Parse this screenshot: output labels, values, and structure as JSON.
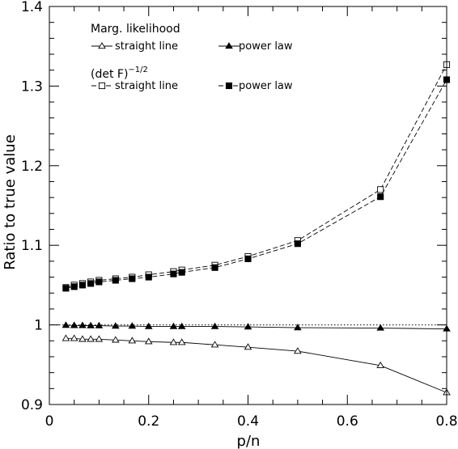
{
  "chart_data": {
    "type": "line",
    "xlabel": "p/n",
    "ylabel": "Ratio to true value",
    "xlim": [
      0,
      0.8
    ],
    "ylim": [
      0.9,
      1.4
    ],
    "xticks": [
      0,
      0.2,
      0.4,
      0.6,
      0.8
    ],
    "xtick_labels": [
      "0",
      "0.2",
      "0.4",
      "0.6",
      "0.8"
    ],
    "yticks": [
      0.9,
      1,
      1.1,
      1.2,
      1.3,
      1.4
    ],
    "ytick_labels": [
      "0.9",
      "1",
      "1.1",
      "1.2",
      "1.3",
      "1.4"
    ],
    "reference_line": {
      "y": 1,
      "style": "dotted"
    },
    "legend": {
      "placement": "top-left",
      "groups": [
        {
          "heading": "Marg. likelihood",
          "heading_base": "",
          "heading_sup": ""
        },
        {
          "heading": "",
          "heading_base": "(det F)",
          "heading_sup": "−1/2"
        }
      ]
    },
    "series": [
      {
        "name": "straight line",
        "group": 0,
        "marker": "triangle-open",
        "line": "solid",
        "x": [
          0.0333,
          0.05,
          0.0667,
          0.0833,
          0.1,
          0.1333,
          0.1667,
          0.2,
          0.25,
          0.2667,
          0.3333,
          0.4,
          0.5,
          0.6667,
          0.8
        ],
        "y": [
          0.983,
          0.983,
          0.982,
          0.982,
          0.982,
          0.981,
          0.98,
          0.979,
          0.978,
          0.978,
          0.975,
          0.972,
          0.967,
          0.949,
          0.915
        ]
      },
      {
        "name": "power law",
        "group": 0,
        "marker": "triangle-filled",
        "line": "solid",
        "x": [
          0.0333,
          0.05,
          0.0667,
          0.0833,
          0.1,
          0.1333,
          0.1667,
          0.2,
          0.25,
          0.2667,
          0.3333,
          0.4,
          0.5,
          0.6667,
          0.8
        ],
        "y": [
          0.9995,
          0.9993,
          0.9992,
          0.999,
          0.999,
          0.9985,
          0.9985,
          0.998,
          0.998,
          0.998,
          0.998,
          0.9975,
          0.9965,
          0.996,
          0.995
        ]
      },
      {
        "name": "straight line",
        "group": 1,
        "marker": "square-open",
        "line": "dashed",
        "x": [
          0.0333,
          0.05,
          0.0667,
          0.0833,
          0.1,
          0.1333,
          0.1667,
          0.2,
          0.25,
          0.2667,
          0.3333,
          0.4,
          0.5,
          0.6667,
          0.8
        ],
        "y": [
          1.047,
          1.05,
          1.052,
          1.054,
          1.056,
          1.058,
          1.06,
          1.063,
          1.067,
          1.069,
          1.075,
          1.086,
          1.106,
          1.17,
          1.327
        ]
      },
      {
        "name": "power law",
        "group": 1,
        "marker": "square-filled",
        "line": "dashed",
        "x": [
          0.0333,
          0.05,
          0.0667,
          0.0833,
          0.1,
          0.1333,
          0.1667,
          0.2,
          0.25,
          0.2667,
          0.3333,
          0.4,
          0.5,
          0.6667,
          0.8
        ],
        "y": [
          1.046,
          1.048,
          1.05,
          1.052,
          1.054,
          1.056,
          1.058,
          1.06,
          1.064,
          1.066,
          1.072,
          1.083,
          1.102,
          1.161,
          1.308
        ]
      }
    ]
  }
}
